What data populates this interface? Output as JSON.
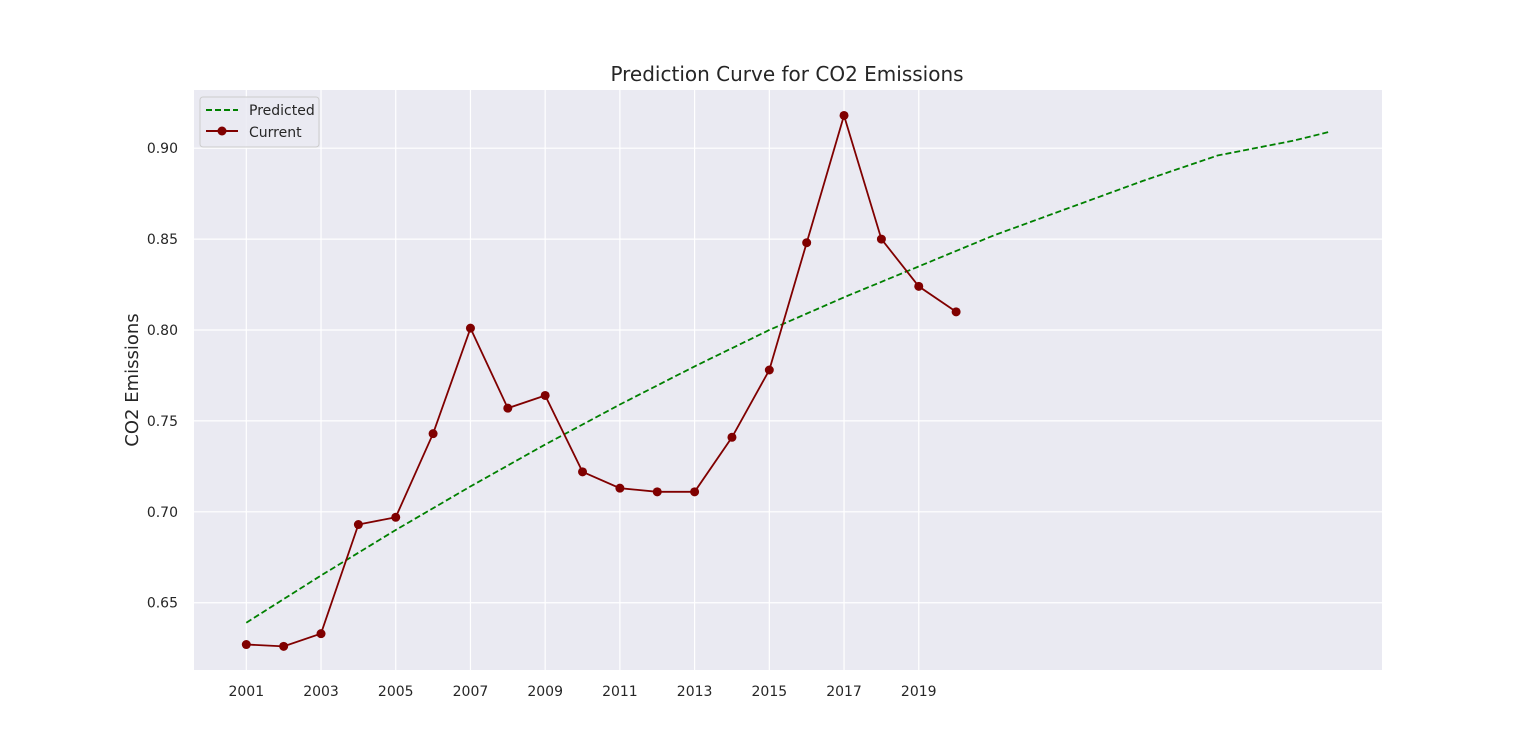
{
  "chart_data": {
    "type": "line",
    "title": "Prediction Curve for CO2 Emissions",
    "xlabel": "",
    "ylabel": "CO2 Emissions",
    "xlim": [
      1999.6,
      2031.4
    ],
    "ylim": [
      0.613,
      0.932
    ],
    "x_ticks": [
      2001,
      2003,
      2005,
      2007,
      2009,
      2011,
      2013,
      2015,
      2017,
      2019
    ],
    "y_ticks": [
      0.65,
      0.7,
      0.75,
      0.8,
      0.85,
      0.9
    ],
    "y_tick_labels": [
      "0.65",
      "0.70",
      "0.75",
      "0.80",
      "0.85",
      "0.90"
    ],
    "grid": true,
    "legend_position": "top-left",
    "background_color": "#eaeaf2",
    "series": [
      {
        "name": "Predicted",
        "style": "dashed",
        "color": "#008000",
        "x": [
          2001,
          2003,
          2005,
          2007,
          2009,
          2011,
          2013,
          2015,
          2017,
          2019,
          2021,
          2023,
          2025,
          2027,
          2029,
          2030
        ],
        "y": [
          0.639,
          0.665,
          0.69,
          0.714,
          0.737,
          0.759,
          0.78,
          0.8,
          0.818,
          0.835,
          0.852,
          0.867,
          0.882,
          0.896,
          0.904,
          0.909
        ]
      },
      {
        "name": "Current",
        "style": "solid-markers",
        "color": "#800000",
        "x": [
          2001,
          2002,
          2003,
          2004,
          2005,
          2006,
          2007,
          2008,
          2009,
          2010,
          2011,
          2012,
          2013,
          2014,
          2015,
          2016,
          2017,
          2018,
          2019,
          2020
        ],
        "y": [
          0.627,
          0.626,
          0.633,
          0.693,
          0.697,
          0.743,
          0.801,
          0.757,
          0.764,
          0.722,
          0.713,
          0.711,
          0.711,
          0.741,
          0.778,
          0.848,
          0.918,
          0.85,
          0.824,
          0.81
        ]
      }
    ]
  }
}
